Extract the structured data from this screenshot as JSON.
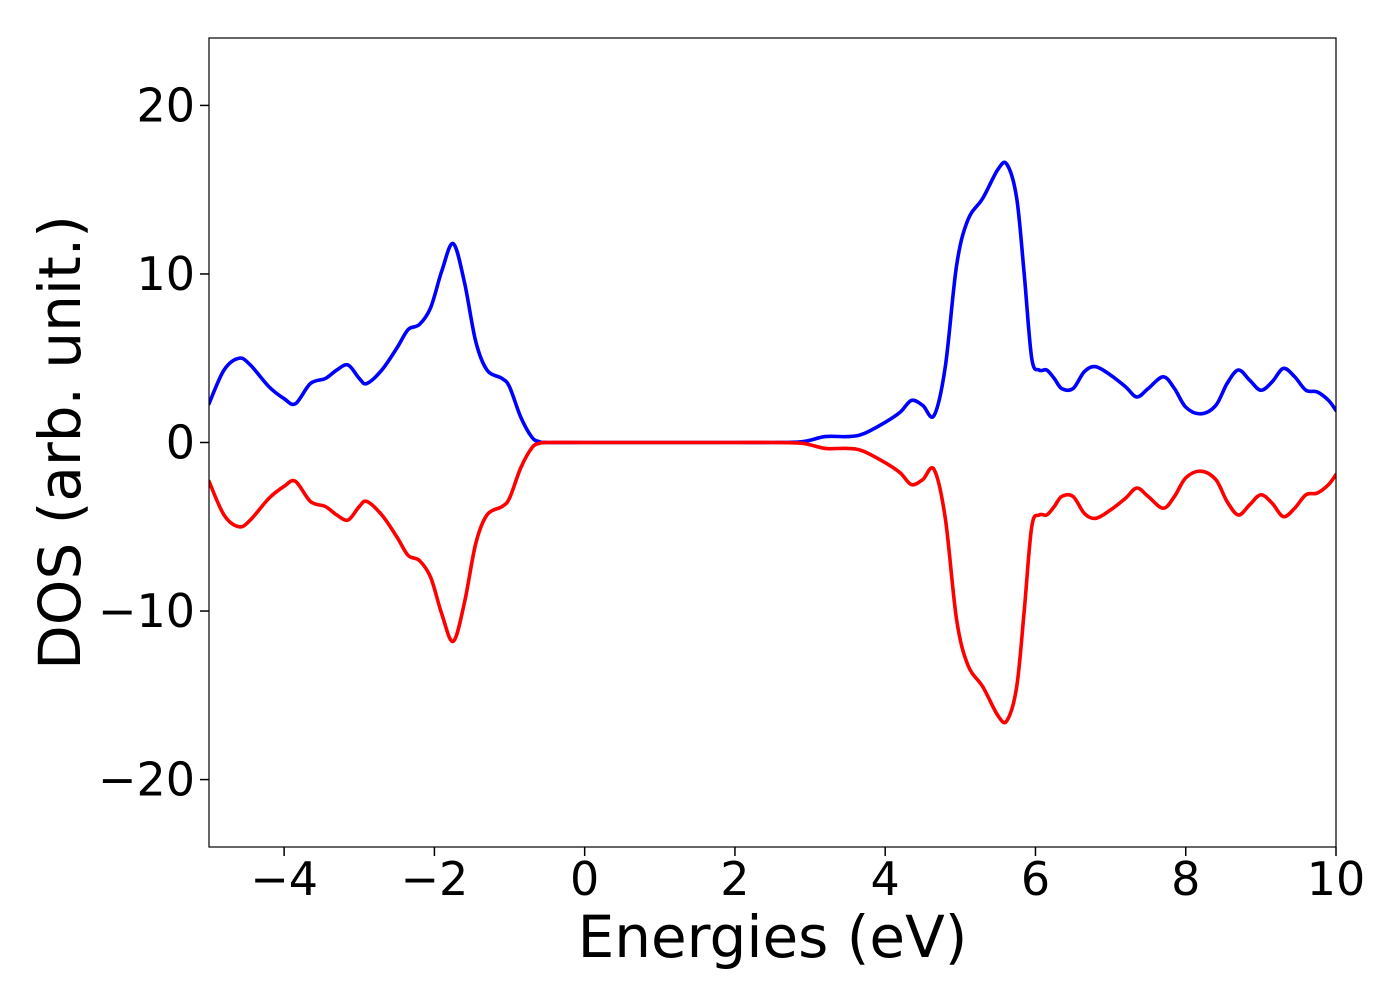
{
  "chart_data": {
    "type": "line",
    "xlabel": "Energies (eV)",
    "ylabel": "DOS (arb. unit.)",
    "xlim": [
      -5,
      10
    ],
    "ylim": [
      -24,
      24
    ],
    "xticks": [
      -4,
      -2,
      0,
      2,
      4,
      6,
      8,
      10
    ],
    "xtick_labels": [
      "−4",
      "−2",
      "0",
      "2",
      "4",
      "6",
      "8",
      "10"
    ],
    "yticks": [
      -20,
      -10,
      0,
      10,
      20
    ],
    "ytick_labels": [
      "−20",
      "−10",
      "0",
      "10",
      "20"
    ],
    "grid": false,
    "legend": "none",
    "series": [
      {
        "color": "#0000ff",
        "x": [
          -5.0,
          -4.8,
          -4.6,
          -4.45,
          -4.2,
          -4.0,
          -3.85,
          -3.65,
          -3.45,
          -3.3,
          -3.15,
          -3.0,
          -2.9,
          -2.7,
          -2.5,
          -2.35,
          -2.2,
          -2.05,
          -1.9,
          -1.75,
          -1.6,
          -1.45,
          -1.3,
          -1.1,
          -1.0,
          -0.85,
          -0.7,
          -0.6,
          -0.5,
          0.0,
          1.0,
          2.0,
          2.5,
          2.9,
          3.2,
          3.5,
          3.7,
          4.0,
          4.2,
          4.35,
          4.5,
          4.65,
          4.8,
          4.95,
          5.1,
          5.3,
          5.5,
          5.62,
          5.75,
          5.85,
          5.95,
          6.05,
          6.15,
          6.25,
          6.35,
          6.5,
          6.65,
          6.8,
          7.0,
          7.2,
          7.35,
          7.5,
          7.7,
          7.85,
          8.0,
          8.2,
          8.4,
          8.55,
          8.7,
          8.85,
          9.0,
          9.15,
          9.3,
          9.45,
          9.6,
          9.75,
          9.9,
          10.0
        ],
        "values": [
          2.3,
          4.3,
          5.0,
          4.6,
          3.3,
          2.6,
          2.3,
          3.5,
          3.8,
          4.3,
          4.6,
          3.8,
          3.5,
          4.3,
          5.6,
          6.7,
          7.0,
          8.0,
          10.2,
          11.8,
          9.5,
          6.0,
          4.3,
          3.8,
          3.3,
          1.5,
          0.3,
          0.05,
          0.0,
          0.0,
          0.0,
          0.0,
          0.0,
          0.05,
          0.35,
          0.35,
          0.5,
          1.2,
          1.8,
          2.5,
          2.2,
          1.6,
          4.5,
          10.5,
          13.2,
          14.5,
          16.2,
          16.5,
          14.5,
          10.0,
          5.0,
          4.3,
          4.3,
          3.8,
          3.2,
          3.2,
          4.2,
          4.5,
          4.0,
          3.3,
          2.7,
          3.2,
          3.9,
          3.2,
          2.1,
          1.7,
          2.2,
          3.5,
          4.3,
          3.7,
          3.1,
          3.6,
          4.4,
          3.9,
          3.1,
          3.0,
          2.5,
          1.9
        ]
      },
      {
        "color": "#ff0000",
        "x": [
          -5.0,
          -4.8,
          -4.6,
          -4.45,
          -4.2,
          -4.0,
          -3.85,
          -3.65,
          -3.45,
          -3.3,
          -3.15,
          -3.0,
          -2.9,
          -2.7,
          -2.5,
          -2.35,
          -2.2,
          -2.05,
          -1.9,
          -1.75,
          -1.6,
          -1.45,
          -1.3,
          -1.1,
          -1.0,
          -0.85,
          -0.7,
          -0.6,
          -0.5,
          0.0,
          1.0,
          2.0,
          2.5,
          2.9,
          3.2,
          3.5,
          3.7,
          4.0,
          4.2,
          4.35,
          4.5,
          4.65,
          4.8,
          4.95,
          5.1,
          5.3,
          5.5,
          5.62,
          5.75,
          5.85,
          5.95,
          6.05,
          6.15,
          6.25,
          6.35,
          6.5,
          6.65,
          6.8,
          7.0,
          7.2,
          7.35,
          7.5,
          7.7,
          7.85,
          8.0,
          8.2,
          8.4,
          8.55,
          8.7,
          8.85,
          9.0,
          9.15,
          9.3,
          9.45,
          9.6,
          9.75,
          9.9,
          10.0
        ],
        "values": [
          -2.3,
          -4.3,
          -5.0,
          -4.6,
          -3.3,
          -2.6,
          -2.3,
          -3.5,
          -3.8,
          -4.3,
          -4.6,
          -3.8,
          -3.5,
          -4.3,
          -5.6,
          -6.7,
          -7.0,
          -8.0,
          -10.2,
          -11.8,
          -9.5,
          -6.0,
          -4.3,
          -3.8,
          -3.3,
          -1.5,
          -0.3,
          -0.05,
          0.0,
          0.0,
          0.0,
          0.0,
          0.0,
          -0.05,
          -0.35,
          -0.35,
          -0.5,
          -1.2,
          -1.8,
          -2.5,
          -2.2,
          -1.6,
          -4.5,
          -10.5,
          -13.2,
          -14.5,
          -16.2,
          -16.5,
          -14.5,
          -10.0,
          -5.0,
          -4.3,
          -4.3,
          -3.8,
          -3.2,
          -3.2,
          -4.2,
          -4.5,
          -4.0,
          -3.3,
          -2.7,
          -3.2,
          -3.9,
          -3.2,
          -2.1,
          -1.7,
          -2.2,
          -3.5,
          -4.3,
          -3.7,
          -3.1,
          -3.6,
          -4.4,
          -3.9,
          -3.1,
          -3.0,
          -2.5,
          -1.9
        ]
      }
    ]
  }
}
